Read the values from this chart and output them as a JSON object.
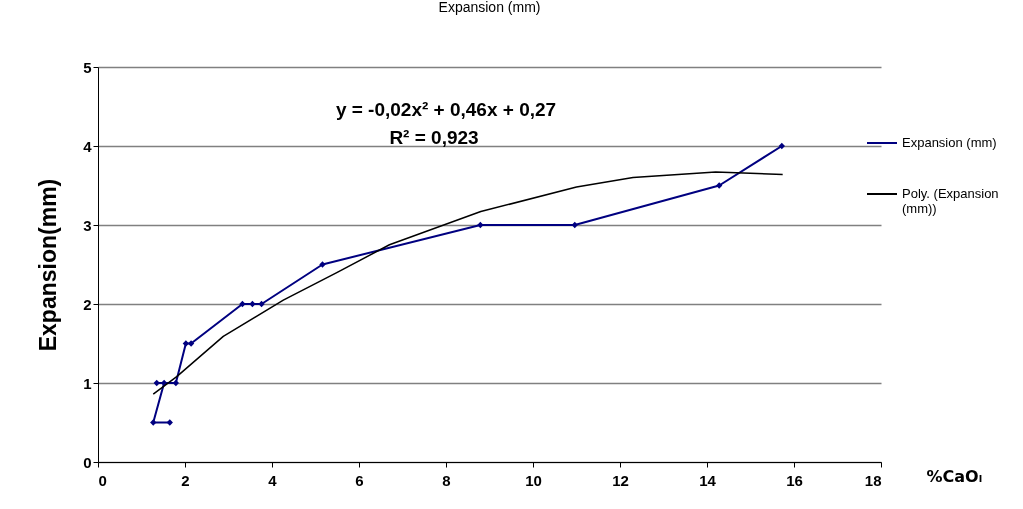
{
  "chart_data": {
    "type": "line",
    "title": "Expansion   (mm)",
    "xlabel": "%CaOₗ",
    "ylabel": "Expansion(mm)",
    "xlim": [
      0,
      18
    ],
    "xticks": [
      0,
      2,
      4,
      6,
      8,
      10,
      12,
      14,
      16,
      18
    ],
    "ylim": [
      0,
      5
    ],
    "yticks": [
      0,
      1,
      2,
      3,
      4,
      5
    ],
    "grid": "y",
    "legend": "right",
    "marker": "diamond",
    "annotations": [
      "y = -0,02x² + 0,46x + 0,27",
      "R² = 0,923"
    ],
    "series": [
      {
        "name": "Expansion   (mm)",
        "color": "#000080",
        "x": [
          1.65,
          1.27,
          1.52,
          1.35,
          1.79,
          2.02,
          2.14,
          3.32,
          3.55,
          3.76,
          5.16,
          8.79,
          10.96,
          14.28,
          15.72
        ],
        "values": [
          0.5,
          0.5,
          1,
          1,
          1,
          1.5,
          1.5,
          2,
          2,
          2,
          2.5,
          3,
          3,
          3.5,
          4
        ]
      },
      {
        "name": "Poly. (Expansion (mm))",
        "color": "#000000",
        "marker": "none",
        "x": [
          1.27,
          1.81,
          2.88,
          4.26,
          5.5,
          6.7,
          8.8,
          11.0,
          12.3,
          14.2,
          15.74
        ],
        "values": [
          0.86,
          1.08,
          1.59,
          2.05,
          2.4,
          2.75,
          3.17,
          3.48,
          3.6,
          3.67,
          3.64
        ]
      }
    ]
  }
}
